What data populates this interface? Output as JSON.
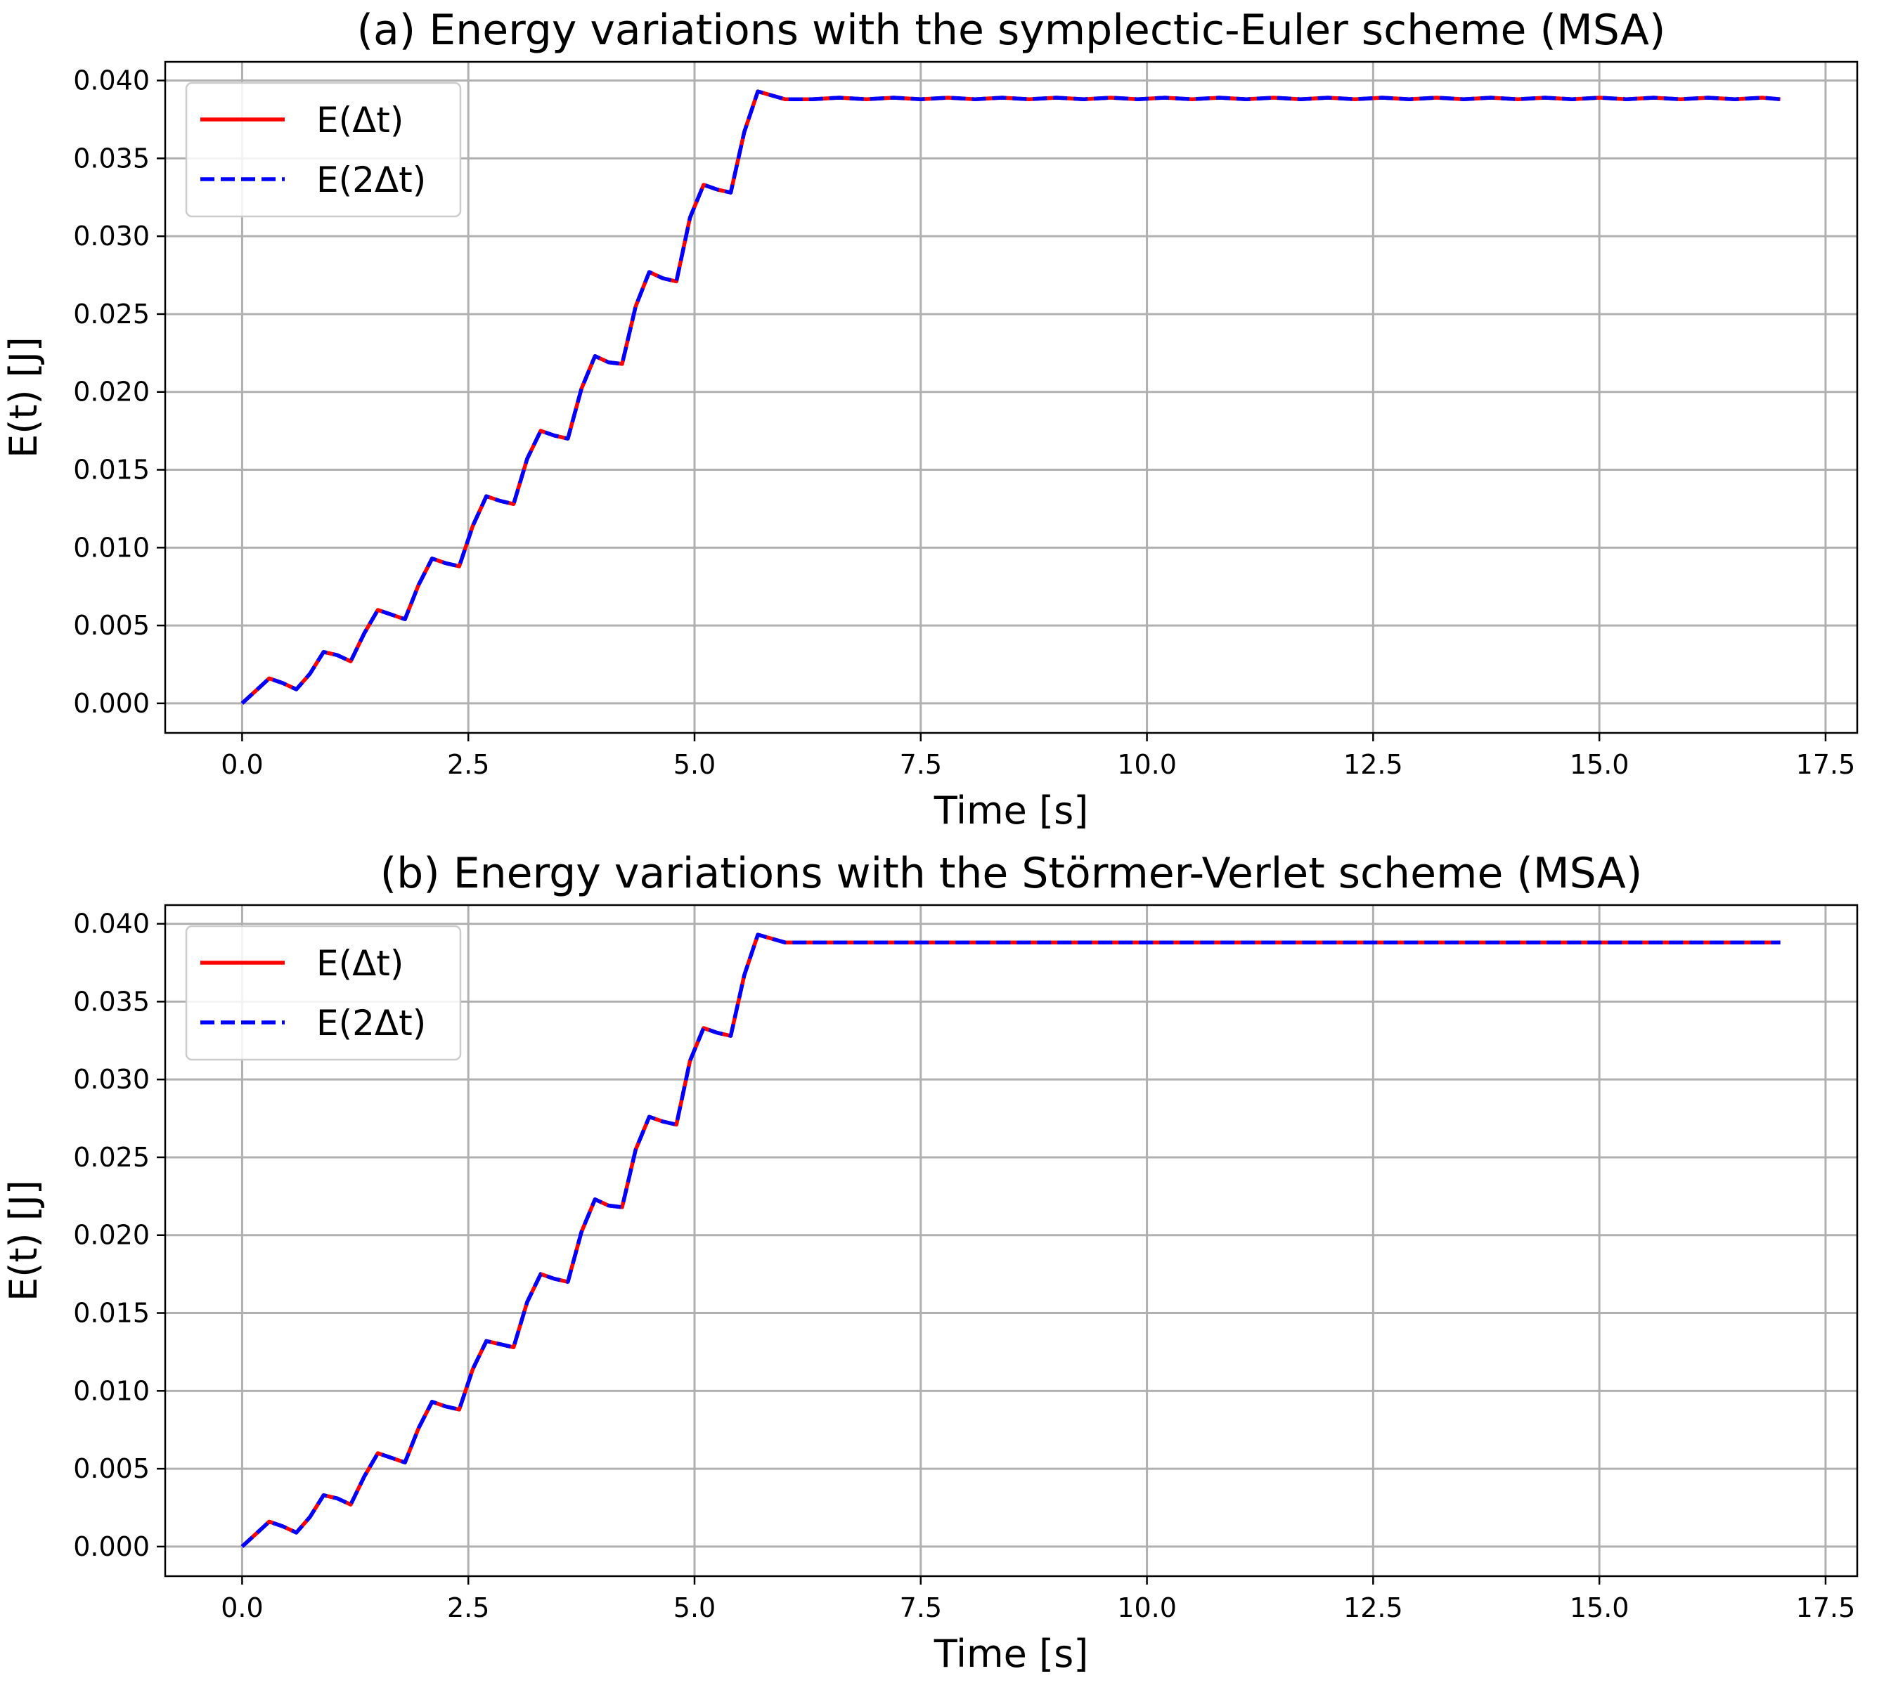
{
  "chart_data": [
    {
      "type": "line",
      "title": "(a) Energy variations with the symplectic-Euler scheme (MSA)",
      "xlabel": "Time [s]",
      "ylabel": "E(t) [J]",
      "xlim": [
        -0.85,
        17.85
      ],
      "ylim": [
        -0.0019,
        0.0412
      ],
      "xticks": [
        0.0,
        2.5,
        5.0,
        7.5,
        10.0,
        12.5,
        15.0,
        17.5
      ],
      "xtick_labels": [
        "0.0",
        "2.5",
        "5.0",
        "7.5",
        "10.0",
        "12.5",
        "15.0",
        "17.5"
      ],
      "yticks": [
        0.0,
        0.005,
        0.01,
        0.015,
        0.02,
        0.025,
        0.03,
        0.035,
        0.04
      ],
      "ytick_labels": [
        "0.000",
        "0.005",
        "0.010",
        "0.015",
        "0.020",
        "0.025",
        "0.030",
        "0.035",
        "0.040"
      ],
      "grid": true,
      "legend_position": "upper-left",
      "series": [
        {
          "name": "E(Δt)",
          "color": "#ff0000",
          "style": "solid",
          "x": [
            0.0,
            0.15,
            0.3,
            0.45,
            0.6,
            0.75,
            0.9,
            1.05,
            1.2,
            1.35,
            1.5,
            1.65,
            1.8,
            1.95,
            2.1,
            2.25,
            2.4,
            2.55,
            2.7,
            2.85,
            3.0,
            3.15,
            3.3,
            3.45,
            3.6,
            3.75,
            3.9,
            4.05,
            4.2,
            4.35,
            4.5,
            4.65,
            4.8,
            4.95,
            5.1,
            5.25,
            5.4,
            5.55,
            5.7,
            6.0,
            6.3,
            6.6,
            6.9,
            7.2,
            7.5,
            7.8,
            8.1,
            8.4,
            8.7,
            9.0,
            9.3,
            9.6,
            9.9,
            10.2,
            10.5,
            10.8,
            11.1,
            11.4,
            11.7,
            12.0,
            12.3,
            12.6,
            12.9,
            13.2,
            13.5,
            13.8,
            14.1,
            14.4,
            14.7,
            15.0,
            15.3,
            15.6,
            15.9,
            16.2,
            16.5,
            16.8,
            17.0
          ],
          "y": [
            0.0,
            0.0008,
            0.0016,
            0.0013,
            0.0009,
            0.0019,
            0.0033,
            0.0031,
            0.0027,
            0.0045,
            0.006,
            0.0057,
            0.0054,
            0.0076,
            0.0093,
            0.009,
            0.0088,
            0.0114,
            0.0133,
            0.013,
            0.0128,
            0.0157,
            0.0175,
            0.0172,
            0.017,
            0.0202,
            0.0223,
            0.0219,
            0.0218,
            0.0255,
            0.0277,
            0.0273,
            0.0271,
            0.0312,
            0.0333,
            0.033,
            0.0328,
            0.0367,
            0.0393,
            0.0388,
            0.0388,
            0.0389,
            0.0388,
            0.0389,
            0.0388,
            0.0389,
            0.0388,
            0.0389,
            0.0388,
            0.0389,
            0.0388,
            0.0389,
            0.0388,
            0.0389,
            0.0388,
            0.0389,
            0.0388,
            0.0389,
            0.0388,
            0.0389,
            0.0388,
            0.0389,
            0.0388,
            0.0389,
            0.0388,
            0.0389,
            0.0388,
            0.0389,
            0.0388,
            0.0389,
            0.0388,
            0.0389,
            0.0388,
            0.0389,
            0.0388,
            0.0389,
            0.0388
          ]
        },
        {
          "name": "E(2Δt)",
          "color": "#0000ff",
          "style": "dashed",
          "x": [
            0.0,
            0.15,
            0.3,
            0.45,
            0.6,
            0.75,
            0.9,
            1.05,
            1.2,
            1.35,
            1.5,
            1.65,
            1.8,
            1.95,
            2.1,
            2.25,
            2.4,
            2.55,
            2.7,
            2.85,
            3.0,
            3.15,
            3.3,
            3.45,
            3.6,
            3.75,
            3.9,
            4.05,
            4.2,
            4.35,
            4.5,
            4.65,
            4.8,
            4.95,
            5.1,
            5.25,
            5.4,
            5.55,
            5.7,
            6.0,
            6.3,
            6.6,
            6.9,
            7.2,
            7.5,
            7.8,
            8.1,
            8.4,
            8.7,
            9.0,
            9.3,
            9.6,
            9.9,
            10.2,
            10.5,
            10.8,
            11.1,
            11.4,
            11.7,
            12.0,
            12.3,
            12.6,
            12.9,
            13.2,
            13.5,
            13.8,
            14.1,
            14.4,
            14.7,
            15.0,
            15.3,
            15.6,
            15.9,
            16.2,
            16.5,
            16.8,
            17.0
          ],
          "y": [
            0.0,
            0.0008,
            0.0016,
            0.0013,
            0.0009,
            0.0019,
            0.0033,
            0.0031,
            0.0027,
            0.0045,
            0.006,
            0.0057,
            0.0054,
            0.0076,
            0.0093,
            0.009,
            0.0088,
            0.0114,
            0.0133,
            0.013,
            0.0128,
            0.0157,
            0.0175,
            0.0172,
            0.017,
            0.0202,
            0.0223,
            0.0219,
            0.0218,
            0.0255,
            0.0277,
            0.0273,
            0.0271,
            0.0312,
            0.0333,
            0.033,
            0.0328,
            0.0367,
            0.0393,
            0.0388,
            0.0388,
            0.0389,
            0.0388,
            0.0389,
            0.0388,
            0.0389,
            0.0388,
            0.0389,
            0.0388,
            0.0389,
            0.0388,
            0.0389,
            0.0388,
            0.0389,
            0.0388,
            0.0389,
            0.0388,
            0.0389,
            0.0388,
            0.0389,
            0.0388,
            0.0389,
            0.0388,
            0.0389,
            0.0388,
            0.0389,
            0.0388,
            0.0389,
            0.0388,
            0.0389,
            0.0388,
            0.0389,
            0.0388,
            0.0389,
            0.0388,
            0.0389,
            0.0388
          ]
        }
      ]
    },
    {
      "type": "line",
      "title": "(b) Energy variations with the Störmer-Verlet scheme (MSA)",
      "xlabel": "Time [s]",
      "ylabel": "E(t) [J]",
      "xlim": [
        -0.85,
        17.85
      ],
      "ylim": [
        -0.0019,
        0.0412
      ],
      "xticks": [
        0.0,
        2.5,
        5.0,
        7.5,
        10.0,
        12.5,
        15.0,
        17.5
      ],
      "xtick_labels": [
        "0.0",
        "2.5",
        "5.0",
        "7.5",
        "10.0",
        "12.5",
        "15.0",
        "17.5"
      ],
      "yticks": [
        0.0,
        0.005,
        0.01,
        0.015,
        0.02,
        0.025,
        0.03,
        0.035,
        0.04
      ],
      "ytick_labels": [
        "0.000",
        "0.005",
        "0.010",
        "0.015",
        "0.020",
        "0.025",
        "0.030",
        "0.035",
        "0.040"
      ],
      "grid": true,
      "legend_position": "upper-left",
      "series": [
        {
          "name": "E(Δt)",
          "color": "#ff0000",
          "style": "solid",
          "x": [
            0.0,
            0.15,
            0.3,
            0.45,
            0.6,
            0.75,
            0.9,
            1.05,
            1.2,
            1.35,
            1.5,
            1.65,
            1.8,
            1.95,
            2.1,
            2.25,
            2.4,
            2.55,
            2.7,
            2.85,
            3.0,
            3.15,
            3.3,
            3.45,
            3.6,
            3.75,
            3.9,
            4.05,
            4.2,
            4.35,
            4.5,
            4.65,
            4.8,
            4.95,
            5.1,
            5.25,
            5.4,
            5.55,
            5.7,
            6.0,
            8.0,
            10.0,
            12.0,
            14.0,
            16.0,
            17.0
          ],
          "y": [
            0.0,
            0.0008,
            0.0016,
            0.0013,
            0.0009,
            0.0019,
            0.0033,
            0.0031,
            0.0027,
            0.0045,
            0.006,
            0.0057,
            0.0054,
            0.0076,
            0.0093,
            0.009,
            0.0088,
            0.0114,
            0.0132,
            0.013,
            0.0128,
            0.0157,
            0.0175,
            0.0172,
            0.017,
            0.0202,
            0.0223,
            0.0219,
            0.0218,
            0.0255,
            0.0276,
            0.0273,
            0.0271,
            0.0312,
            0.0333,
            0.033,
            0.0328,
            0.0367,
            0.0393,
            0.0388,
            0.0388,
            0.0388,
            0.0388,
            0.0388,
            0.0388,
            0.0388
          ]
        },
        {
          "name": "E(2Δt)",
          "color": "#0000ff",
          "style": "dashed",
          "x": [
            0.0,
            0.15,
            0.3,
            0.45,
            0.6,
            0.75,
            0.9,
            1.05,
            1.2,
            1.35,
            1.5,
            1.65,
            1.8,
            1.95,
            2.1,
            2.25,
            2.4,
            2.55,
            2.7,
            2.85,
            3.0,
            3.15,
            3.3,
            3.45,
            3.6,
            3.75,
            3.9,
            4.05,
            4.2,
            4.35,
            4.5,
            4.65,
            4.8,
            4.95,
            5.1,
            5.25,
            5.4,
            5.55,
            5.7,
            6.0,
            8.0,
            10.0,
            12.0,
            14.0,
            16.0,
            17.0
          ],
          "y": [
            0.0,
            0.0008,
            0.0016,
            0.0013,
            0.0009,
            0.0019,
            0.0033,
            0.0031,
            0.0027,
            0.0045,
            0.006,
            0.0057,
            0.0054,
            0.0076,
            0.0093,
            0.009,
            0.0088,
            0.0114,
            0.0132,
            0.013,
            0.0128,
            0.0157,
            0.0175,
            0.0172,
            0.017,
            0.0202,
            0.0223,
            0.0219,
            0.0218,
            0.0255,
            0.0276,
            0.0273,
            0.0271,
            0.0312,
            0.0333,
            0.033,
            0.0328,
            0.0367,
            0.0393,
            0.0388,
            0.0388,
            0.0388,
            0.0388,
            0.0388,
            0.0388,
            0.0388
          ]
        }
      ]
    }
  ]
}
